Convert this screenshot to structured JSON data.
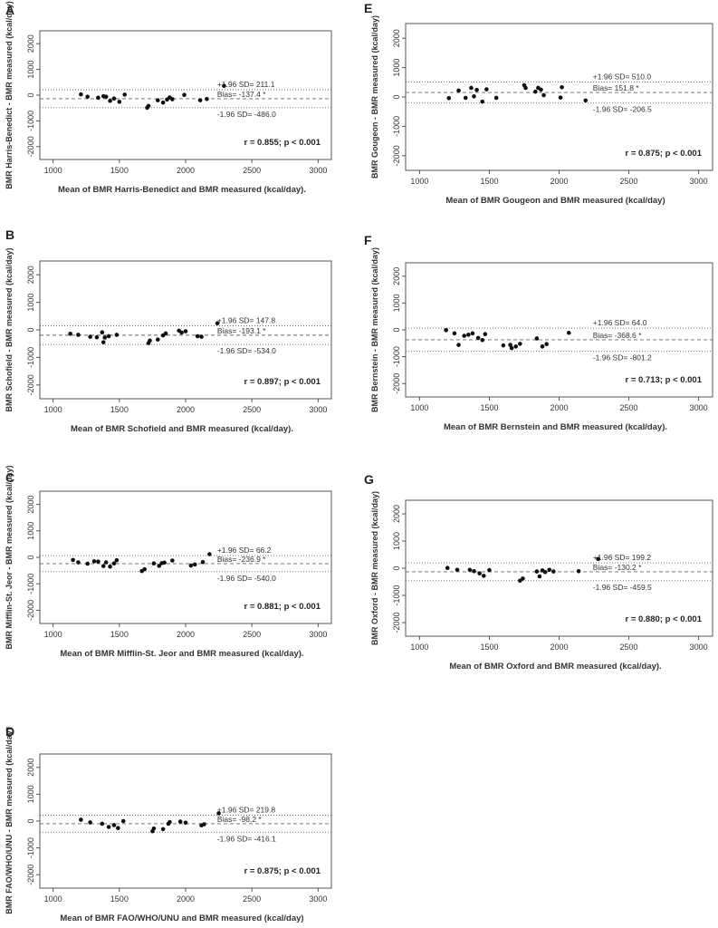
{
  "figure": {
    "panels": [
      "A",
      "B",
      "C",
      "D",
      "E",
      "F",
      "G"
    ]
  },
  "chart_data": [
    {
      "panel": "A",
      "type": "scatter",
      "ylabel": "BMR Harris-Benedict - BMR measured (kcal/day)",
      "xlabel": "Mean of BMR Harris-Benedict and BMR measured (kcal/day).",
      "xlim": [
        900,
        3100
      ],
      "ylim": [
        -2500,
        2500
      ],
      "xticks": [
        1000,
        1500,
        2000,
        2500,
        3000
      ],
      "yticks": [
        -2000,
        -1000,
        0,
        1000,
        2000
      ],
      "upper_loa": 211.1,
      "bias": -137.4,
      "lower_loa": -486.0,
      "upper_label": "+1.96 SD= 211.1",
      "bias_label": "Bias= -137.4 *",
      "lower_label": "-1.96 SD= -486.0",
      "stat": "r = 0.855; p < 0.001",
      "points": [
        [
          1210,
          30
        ],
        [
          1260,
          -60
        ],
        [
          1340,
          -100
        ],
        [
          1380,
          -40
        ],
        [
          1400,
          -60
        ],
        [
          1430,
          -220
        ],
        [
          1460,
          -130
        ],
        [
          1500,
          -260
        ],
        [
          1540,
          20
        ],
        [
          1710,
          -490
        ],
        [
          1720,
          -420
        ],
        [
          1790,
          -200
        ],
        [
          1830,
          -290
        ],
        [
          1860,
          -170
        ],
        [
          1880,
          -90
        ],
        [
          1900,
          -160
        ],
        [
          1990,
          10
        ],
        [
          2110,
          -200
        ],
        [
          2160,
          -150
        ],
        [
          2290,
          360
        ]
      ]
    },
    {
      "panel": "B",
      "type": "scatter",
      "ylabel": "BMR Schofield - BMR measured (kcal/day)",
      "xlabel": "Mean of BMR Schofield and BMR measured (kcal/day).",
      "xlim": [
        900,
        3100
      ],
      "ylim": [
        -2500,
        2500
      ],
      "xticks": [
        1000,
        1500,
        2000,
        2500,
        3000
      ],
      "yticks": [
        -2000,
        -1000,
        0,
        1000,
        2000
      ],
      "upper_loa": 147.8,
      "bias": -193.1,
      "lower_loa": -534.0,
      "upper_label": "+1.96 SD= 147.8",
      "bias_label": "Bias= -193.1 *",
      "lower_label": "-1.96 SD= -534.0",
      "stat": "r = 0.897; p < 0.001",
      "points": [
        [
          1130,
          -140
        ],
        [
          1190,
          -180
        ],
        [
          1280,
          -250
        ],
        [
          1330,
          -270
        ],
        [
          1370,
          -90
        ],
        [
          1380,
          -450
        ],
        [
          1390,
          -280
        ],
        [
          1420,
          -230
        ],
        [
          1480,
          -180
        ],
        [
          1720,
          -480
        ],
        [
          1730,
          -390
        ],
        [
          1790,
          -350
        ],
        [
          1830,
          -200
        ],
        [
          1850,
          -130
        ],
        [
          1950,
          -30
        ],
        [
          1970,
          -100
        ],
        [
          2000,
          -50
        ],
        [
          2090,
          -230
        ],
        [
          2120,
          -250
        ],
        [
          2240,
          240
        ]
      ]
    },
    {
      "panel": "C",
      "type": "scatter",
      "ylabel": "BMR Mifflin-St. Jeor - BMR measured (kcal/day)",
      "xlabel": "Mean of BMR Mifflin-St. Jeor and BMR measured (kcal/day).",
      "xlim": [
        900,
        3100
      ],
      "ylim": [
        -2500,
        2500
      ],
      "xticks": [
        1000,
        1500,
        2000,
        2500,
        3000
      ],
      "yticks": [
        -2000,
        -1000,
        0,
        1000,
        2000
      ],
      "upper_loa": 66.2,
      "bias": -236.9,
      "lower_loa": -540.0,
      "upper_label": "+1.96 SD= 66.2",
      "bias_label": "Bias= -236.9 *",
      "lower_label": "-1.96 SD= -540.0",
      "stat": "r = 0.881; p < 0.001",
      "points": [
        [
          1150,
          -100
        ],
        [
          1190,
          -190
        ],
        [
          1260,
          -240
        ],
        [
          1310,
          -150
        ],
        [
          1340,
          -160
        ],
        [
          1380,
          -330
        ],
        [
          1400,
          -190
        ],
        [
          1430,
          -350
        ],
        [
          1460,
          -230
        ],
        [
          1480,
          -110
        ],
        [
          1670,
          -520
        ],
        [
          1690,
          -450
        ],
        [
          1760,
          -230
        ],
        [
          1800,
          -320
        ],
        [
          1820,
          -220
        ],
        [
          1840,
          -200
        ],
        [
          1900,
          -120
        ],
        [
          2040,
          -310
        ],
        [
          2070,
          -270
        ],
        [
          2130,
          -180
        ],
        [
          2180,
          120
        ]
      ]
    },
    {
      "panel": "D",
      "type": "scatter",
      "ylabel": "BMR FAO/WHO/UNU - BMR measured (kcal/day)",
      "xlabel": "Mean of BMR FAO/WHO/UNU and BMR measured (kcal/day)",
      "xlim": [
        900,
        3100
      ],
      "ylim": [
        -2500,
        2500
      ],
      "xticks": [
        1000,
        1500,
        2000,
        2500,
        3000
      ],
      "yticks": [
        -2000,
        -1000,
        0,
        1000,
        2000
      ],
      "upper_loa": 219.8,
      "bias": -98.2,
      "lower_loa": -416.1,
      "upper_label": "+1.96 SD= 219.8",
      "bias_label": "Bias= -98.2 *",
      "lower_label": "-1.96 SD= -416.1",
      "stat": "r = 0.875; p < 0.001",
      "points": [
        [
          1210,
          50
        ],
        [
          1280,
          -50
        ],
        [
          1370,
          -100
        ],
        [
          1420,
          -220
        ],
        [
          1460,
          -150
        ],
        [
          1490,
          -260
        ],
        [
          1530,
          0
        ],
        [
          1750,
          -380
        ],
        [
          1760,
          -280
        ],
        [
          1830,
          -300
        ],
        [
          1870,
          -100
        ],
        [
          1880,
          -40
        ],
        [
          1960,
          -20
        ],
        [
          2000,
          -60
        ],
        [
          2120,
          -160
        ],
        [
          2140,
          -120
        ],
        [
          2250,
          290
        ]
      ]
    },
    {
      "panel": "E",
      "type": "scatter",
      "ylabel": "BMR Gougeon - BMR measured (kcal/day)",
      "xlabel": "Mean of BMR Gougeon and BMR measured (kcal/day)",
      "xlim": [
        900,
        3100
      ],
      "ylim": [
        -2500,
        2500
      ],
      "xticks": [
        1000,
        1500,
        2000,
        2500,
        3000
      ],
      "yticks": [
        -2000,
        -1000,
        0,
        1000,
        2000
      ],
      "upper_loa": 510.0,
      "bias": 151.8,
      "lower_loa": -206.5,
      "upper_label": "+1.96 SD= 510.0",
      "bias_label": "Bias= 151.8 *",
      "lower_label": "-1.96 SD= -206.5",
      "stat": "r = 0.875; p < 0.001",
      "points": [
        [
          1210,
          -40
        ],
        [
          1280,
          220
        ],
        [
          1330,
          -30
        ],
        [
          1370,
          310
        ],
        [
          1390,
          20
        ],
        [
          1410,
          240
        ],
        [
          1450,
          -160
        ],
        [
          1480,
          260
        ],
        [
          1550,
          -30
        ],
        [
          1750,
          400
        ],
        [
          1760,
          310
        ],
        [
          1830,
          180
        ],
        [
          1850,
          310
        ],
        [
          1870,
          250
        ],
        [
          1890,
          60
        ],
        [
          2010,
          -20
        ],
        [
          2020,
          330
        ],
        [
          2190,
          -120
        ]
      ]
    },
    {
      "panel": "F",
      "type": "scatter",
      "ylabel": "BMR Bernstein - BMR measured (kcal/day)",
      "xlabel": "Mean of BMR Bernstein and BMR measured (kcal/day).",
      "xlim": [
        900,
        3100
      ],
      "ylim": [
        -2500,
        2500
      ],
      "xticks": [
        1000,
        1500,
        2000,
        2500,
        3000
      ],
      "yticks": [
        -2000,
        -1000,
        0,
        1000,
        2000
      ],
      "upper_loa": 64.0,
      "bias": -368.6,
      "lower_loa": -801.2,
      "upper_label": "+1.96 SD= 64.0",
      "bias_label": "Bias= -368.6 *",
      "lower_label": "-1.96 SD= -801.2",
      "stat": "r = 0.713; p < 0.001",
      "points": [
        [
          1190,
          -10
        ],
        [
          1250,
          -130
        ],
        [
          1280,
          -560
        ],
        [
          1320,
          -220
        ],
        [
          1350,
          -180
        ],
        [
          1380,
          -130
        ],
        [
          1420,
          -300
        ],
        [
          1450,
          -380
        ],
        [
          1470,
          -160
        ],
        [
          1600,
          -580
        ],
        [
          1650,
          -560
        ],
        [
          1660,
          -680
        ],
        [
          1690,
          -620
        ],
        [
          1720,
          -520
        ],
        [
          1840,
          -320
        ],
        [
          1880,
          -620
        ],
        [
          1910,
          -530
        ],
        [
          2070,
          -110
        ]
      ]
    },
    {
      "panel": "G",
      "type": "scatter",
      "ylabel": "BMR Oxford - BMR measured (kcal/day)",
      "xlabel": "Mean of BMR Oxford and BMR measured (kcal/day).",
      "xlim": [
        900,
        3100
      ],
      "ylim": [
        -2500,
        2500
      ],
      "xticks": [
        1000,
        1500,
        2000,
        2500,
        3000
      ],
      "yticks": [
        -2000,
        -1000,
        0,
        1000,
        2000
      ],
      "upper_loa": 199.2,
      "bias": -130.2,
      "lower_loa": -459.5,
      "upper_label": "+1.96 SD= 199.2",
      "bias_label": "Bias= -130.2 *",
      "lower_label": "-1.96 SD= -459.5",
      "stat": "r = 0.880; p < 0.001",
      "points": [
        [
          1200,
          10
        ],
        [
          1270,
          -60
        ],
        [
          1360,
          -60
        ],
        [
          1390,
          -110
        ],
        [
          1430,
          -190
        ],
        [
          1460,
          -280
        ],
        [
          1500,
          -70
        ],
        [
          1720,
          -460
        ],
        [
          1740,
          -380
        ],
        [
          1840,
          -120
        ],
        [
          1860,
          -300
        ],
        [
          1880,
          -80
        ],
        [
          1900,
          -140
        ],
        [
          1930,
          -60
        ],
        [
          1960,
          -120
        ],
        [
          2140,
          -110
        ],
        [
          2280,
          340
        ]
      ]
    }
  ]
}
